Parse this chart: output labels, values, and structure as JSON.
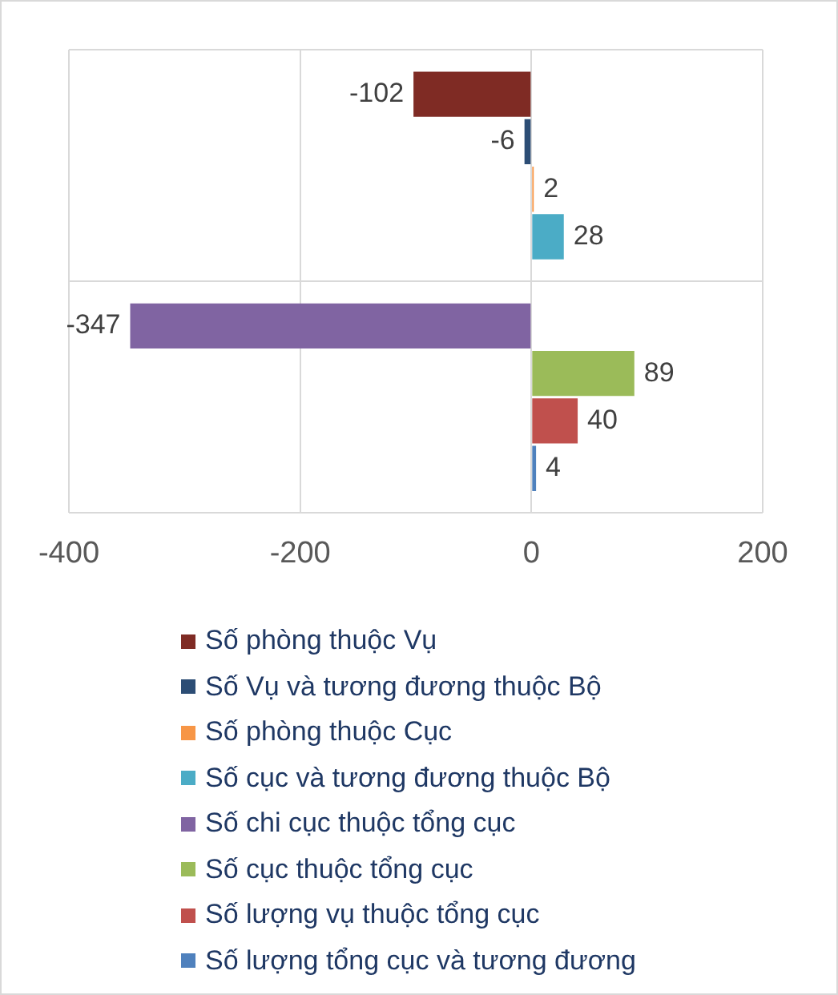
{
  "chart_data": {
    "type": "bar",
    "orientation": "horizontal",
    "categories": [
      null,
      null
    ],
    "series": [
      {
        "name": "Số phòng thuộc Vụ",
        "color": "#7f2b24",
        "values": [
          -102,
          null
        ]
      },
      {
        "name": "Số Vụ và tương đương thuộc Bộ",
        "color": "#2c4d75",
        "values": [
          -6,
          null
        ]
      },
      {
        "name": "Số phòng thuộc Cục",
        "color": "#f79646",
        "values": [
          2,
          null
        ]
      },
      {
        "name": "Số cục và tương đương thuộc Bộ",
        "color": "#4bacc6",
        "values": [
          28,
          null
        ]
      },
      {
        "name": "Số chi cục thuộc tổng cục",
        "color": "#8064a2",
        "values": [
          null,
          -347
        ]
      },
      {
        "name": "Số cục thuộc tổng cục",
        "color": "#9bbb59",
        "values": [
          null,
          89
        ]
      },
      {
        "name": "Số lượng vụ thuộc tổng cục",
        "color": "#c0504d",
        "values": [
          null,
          40
        ]
      },
      {
        "name": "Số lượng tổng cục và tương đương",
        "color": "#4f81bd",
        "values": [
          null,
          4
        ]
      }
    ],
    "xlim": [
      -400,
      200
    ],
    "xticks": [
      -400,
      -200,
      0,
      200
    ],
    "grid": true,
    "legend": "bottom",
    "data_labels": true
  }
}
